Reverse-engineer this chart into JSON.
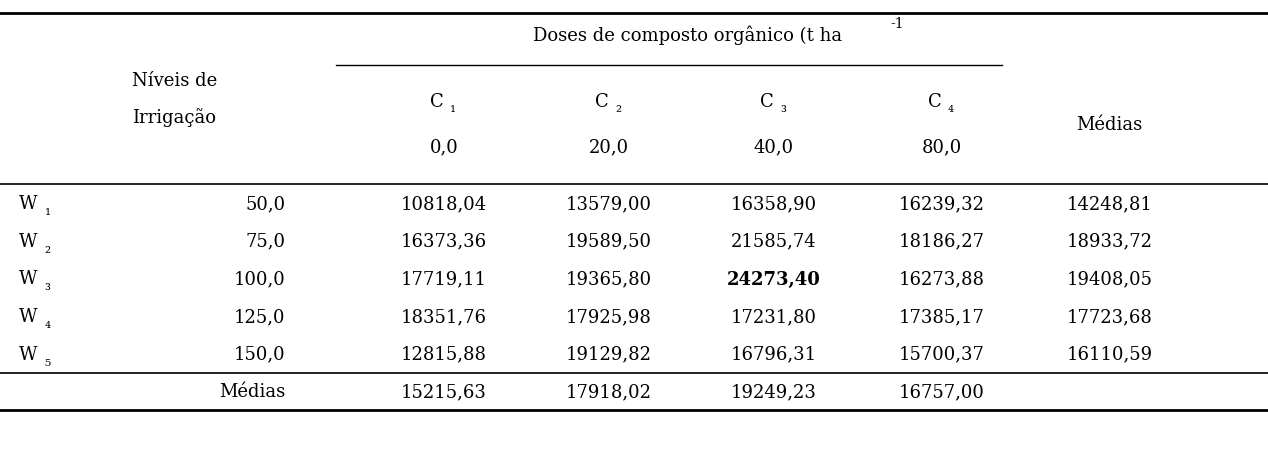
{
  "title_main": "Doses de composto orgânico (t ha",
  "title_superscript": "-1",
  "col_header_row1": [
    "C₁",
    "C₂",
    "C₃",
    "C₄"
  ],
  "col_header_row2": [
    "0,0",
    "20,0",
    "40,0",
    "80,0"
  ],
  "medias_col_header": "Médias",
  "nivel_header_line1": "Níveis de",
  "nivel_header_line2": "Irrigação",
  "row_labels": [
    "W₁",
    "W₂",
    "W₃",
    "W₄",
    "W₅"
  ],
  "row_sublabels": [
    "50,0",
    "75,0",
    "100,0",
    "125,0",
    "150,0"
  ],
  "data": [
    [
      "10818,04",
      "13579,00",
      "16358,90",
      "16239,32",
      "14248,81"
    ],
    [
      "16373,36",
      "19589,50",
      "21585,74",
      "18186,27",
      "18933,72"
    ],
    [
      "17719,11",
      "19365,80",
      "24273,40",
      "16273,88",
      "19408,05"
    ],
    [
      "18351,76",
      "17925,98",
      "17231,80",
      "17385,17",
      "17723,68"
    ],
    [
      "12815,88",
      "19129,82",
      "16796,31",
      "15700,37",
      "16110,59"
    ]
  ],
  "bold_cell": [
    2,
    2
  ],
  "medias_row_label": "Médias",
  "medias_row": [
    "15215,63",
    "17918,02",
    "19249,23",
    "16757,00"
  ],
  "bg_color": "#ffffff",
  "text_color": "#000000",
  "line_color": "#000000",
  "font_size": 13
}
